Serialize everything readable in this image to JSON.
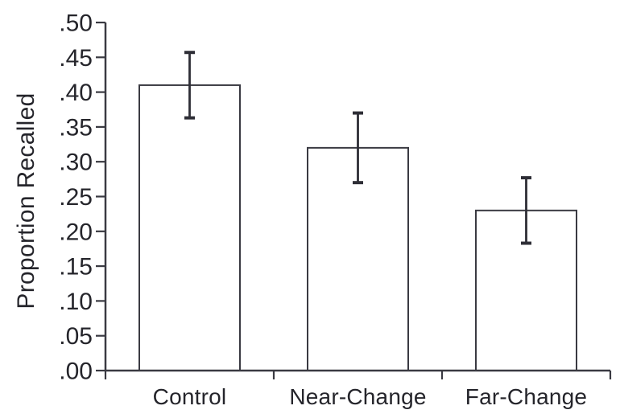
{
  "chart_data": {
    "type": "bar",
    "title": "",
    "xlabel": "",
    "ylabel": "Proportion Recalled",
    "categories": [
      "Control",
      "Near-Change",
      "Far-Change"
    ],
    "values": [
      0.41,
      0.32,
      0.23
    ],
    "error_bars": [
      0.047,
      0.05,
      0.047
    ],
    "error_bar_style": "plus-minus with caps",
    "ylim": [
      0.0,
      0.5
    ],
    "ytick_interval": 0.05,
    "ytick_labels": [
      ".00",
      ".05",
      ".10",
      ".15",
      ".20",
      ".25",
      ".30",
      ".35",
      ".40",
      ".45",
      ".50"
    ],
    "grid": false,
    "legend": "none",
    "bar_fill": "#ffffff"
  },
  "colors": {
    "background": "#ffffff",
    "axis_line": "#3a3a42",
    "bar_outline": "#3a3a42",
    "error_bar": "#2e2e36",
    "text": "#25252b"
  }
}
